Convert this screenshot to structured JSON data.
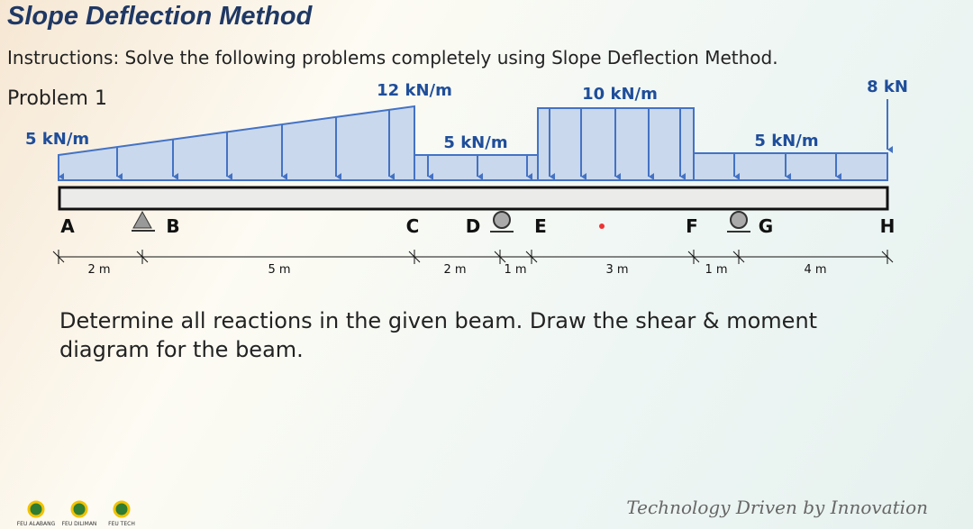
{
  "header": {
    "title": "Slope Deflection Method",
    "instructions": "Instructions: Solve the following problems completely using Slope Deflection Method."
  },
  "problem": {
    "label": "Problem 1",
    "loads": [
      "12 kN/m",
      "10 kN/m",
      "8 kN",
      "5 kN/m",
      "5 kN/m",
      "5 kN/m"
    ],
    "nodes": [
      "A",
      "B",
      "C",
      "D",
      "E",
      "F",
      "G",
      "H"
    ],
    "spans": [
      "2 m",
      "5 m",
      "2 m",
      "1 m",
      "3 m",
      "1 m",
      "4 m"
    ],
    "question": "Determine all reactions in the given beam. Draw the shear & moment diagram for the beam."
  },
  "footer": {
    "tagline": "Technology Driven by Innovation",
    "logos": [
      "FEU ALABANG",
      "FEU DILIMAN",
      "FEU TECH"
    ]
  }
}
